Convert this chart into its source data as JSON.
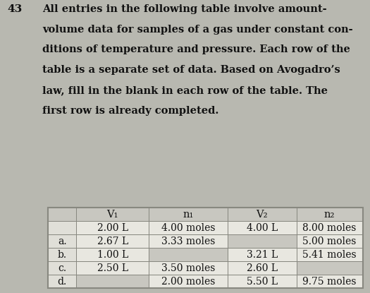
{
  "problem_number": "43",
  "intro_lines": [
    "All entries in the following table involve amount-",
    "volume data for samples of a gas under constant con-",
    "ditions of temperature and pressure. Each row of the",
    "table is a separate set of data. Based on Avogadro’s",
    "law, fill in the blank in each row of the table. The",
    "first row is already completed."
  ],
  "col_headers": [
    "V₁",
    "n₁",
    "V₂",
    "n₂"
  ],
  "row_labels": [
    "",
    "a.",
    "b.",
    "c.",
    "d."
  ],
  "table_data": [
    [
      "2.00 L",
      "4.00 moles",
      "4.00 L",
      "8.00 moles"
    ],
    [
      "2.67 L",
      "3.33 moles",
      "",
      "5.00 moles"
    ],
    [
      "1.00 L",
      "",
      "3.21 L",
      "5.41 moles"
    ],
    [
      "2.50 L",
      "3.50 moles",
      "2.60 L",
      ""
    ],
    [
      "",
      "2.00 moles",
      "5.50 L",
      "9.75 moles"
    ]
  ],
  "fig_bg": "#b8b8b0",
  "table_outer_bg": "#e0dfd8",
  "header_cell_bg": "#c8c7c0",
  "data_cell_bg": "#e8e7e0",
  "blank_cell_bg": "#c8c7c0",
  "row_label_bg": "#e0dfd8",
  "border_color": "#888880",
  "text_color": "#111111",
  "num43_color": "#111111",
  "font_size_intro": 10.5,
  "font_size_table": 10.0,
  "font_size_header": 10.5
}
